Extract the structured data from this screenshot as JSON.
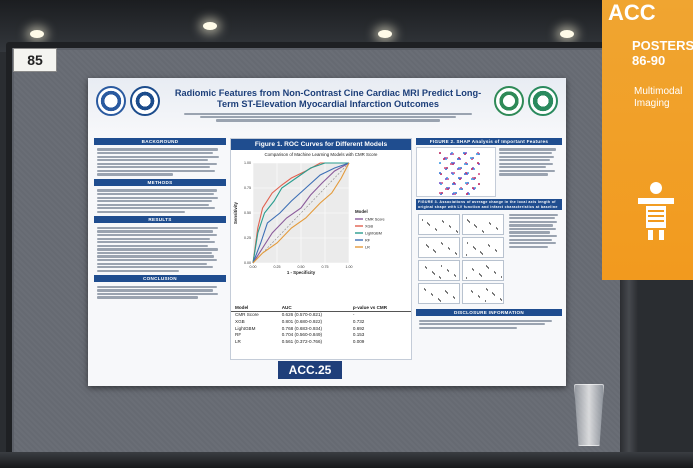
{
  "board": {
    "number": "85"
  },
  "banner": {
    "acc": "ACC",
    "posters": "POSTERS 86-90",
    "topic": "Multimodal Imaging"
  },
  "poster": {
    "title": "Radiomic Features from Non-Contrast Cine Cardiac MRI Predict Long-Term ST-Elevation Myocardial Infarction Outcomes",
    "sections": {
      "background": "BACKGROUND",
      "methods": "METHODS",
      "results": "RESULTS",
      "conclusion": "CONCLUSION"
    },
    "figure1": {
      "heading": "Figure 1. ROC Curves for Different Models",
      "chart_title": "Comparison of Machine Learning Models with CMR Score"
    },
    "figure2": {
      "heading": "FIGURE 2. SHAP Analysis of Important Features"
    },
    "figure3": {
      "heading": "FIGURE 3. Associations of average change in the local axis length of original shape with LV function and infarct characteristics at baseline"
    },
    "disclosure": {
      "heading": "DISCLOSURE INFORMATION"
    },
    "acc_badge": "ACC.25",
    "auc_table": {
      "headers": [
        "Model",
        "AUC",
        "p-value vs CMR"
      ],
      "rows": [
        [
          "CMR Score",
          "0.626 (0.570-0.821)",
          "-"
        ],
        [
          "XGB",
          "0.801 (0.680-0.922)",
          "0.732"
        ],
        [
          "LightGBM",
          "0.768 (0.683-0.934)",
          "0.692"
        ],
        [
          "RF",
          "0.704 (0.560-0.849)",
          "0.153"
        ],
        [
          "LR",
          "0.561 (0.372-0.766)",
          "0.009"
        ]
      ]
    }
  },
  "chart_data": {
    "type": "line",
    "title": "Comparison of Machine Learning Models with CMR Score",
    "xlabel": "1 - Specificity",
    "ylabel": "Sensitivity",
    "xlim": [
      0,
      1
    ],
    "ylim": [
      0,
      1
    ],
    "legend_title": "Model",
    "legend_position": "bottom-right",
    "series": [
      {
        "name": "CMR Score",
        "color": "#8a5a9b",
        "x": [
          0,
          0.1,
          0.2,
          0.35,
          0.5,
          0.6,
          0.72,
          0.85,
          1
        ],
        "y": [
          0,
          0.15,
          0.3,
          0.45,
          0.55,
          0.68,
          0.8,
          0.92,
          1
        ]
      },
      {
        "name": "XGB",
        "color": "#e0614f",
        "x": [
          0,
          0.05,
          0.1,
          0.2,
          0.3,
          0.4,
          0.55,
          0.7,
          1
        ],
        "y": [
          0,
          0.35,
          0.55,
          0.7,
          0.78,
          0.85,
          0.92,
          1,
          1
        ]
      },
      {
        "name": "LightGBM",
        "color": "#2a9d8f",
        "x": [
          0,
          0.05,
          0.12,
          0.22,
          0.3,
          0.45,
          0.6,
          0.75,
          1
        ],
        "y": [
          0,
          0.3,
          0.5,
          0.62,
          0.75,
          0.85,
          0.95,
          1,
          1
        ]
      },
      {
        "name": "RF",
        "color": "#3d6fb5",
        "x": [
          0,
          0.08,
          0.15,
          0.28,
          0.4,
          0.55,
          0.7,
          0.85,
          1
        ],
        "y": [
          0,
          0.2,
          0.4,
          0.5,
          0.62,
          0.75,
          0.88,
          0.95,
          1
        ]
      },
      {
        "name": "LR",
        "color": "#e39a3a",
        "x": [
          0,
          0.1,
          0.25,
          0.4,
          0.55,
          0.7,
          0.82,
          0.92,
          1
        ],
        "y": [
          0,
          0.1,
          0.2,
          0.35,
          0.45,
          0.6,
          0.7,
          0.85,
          1
        ]
      }
    ]
  }
}
